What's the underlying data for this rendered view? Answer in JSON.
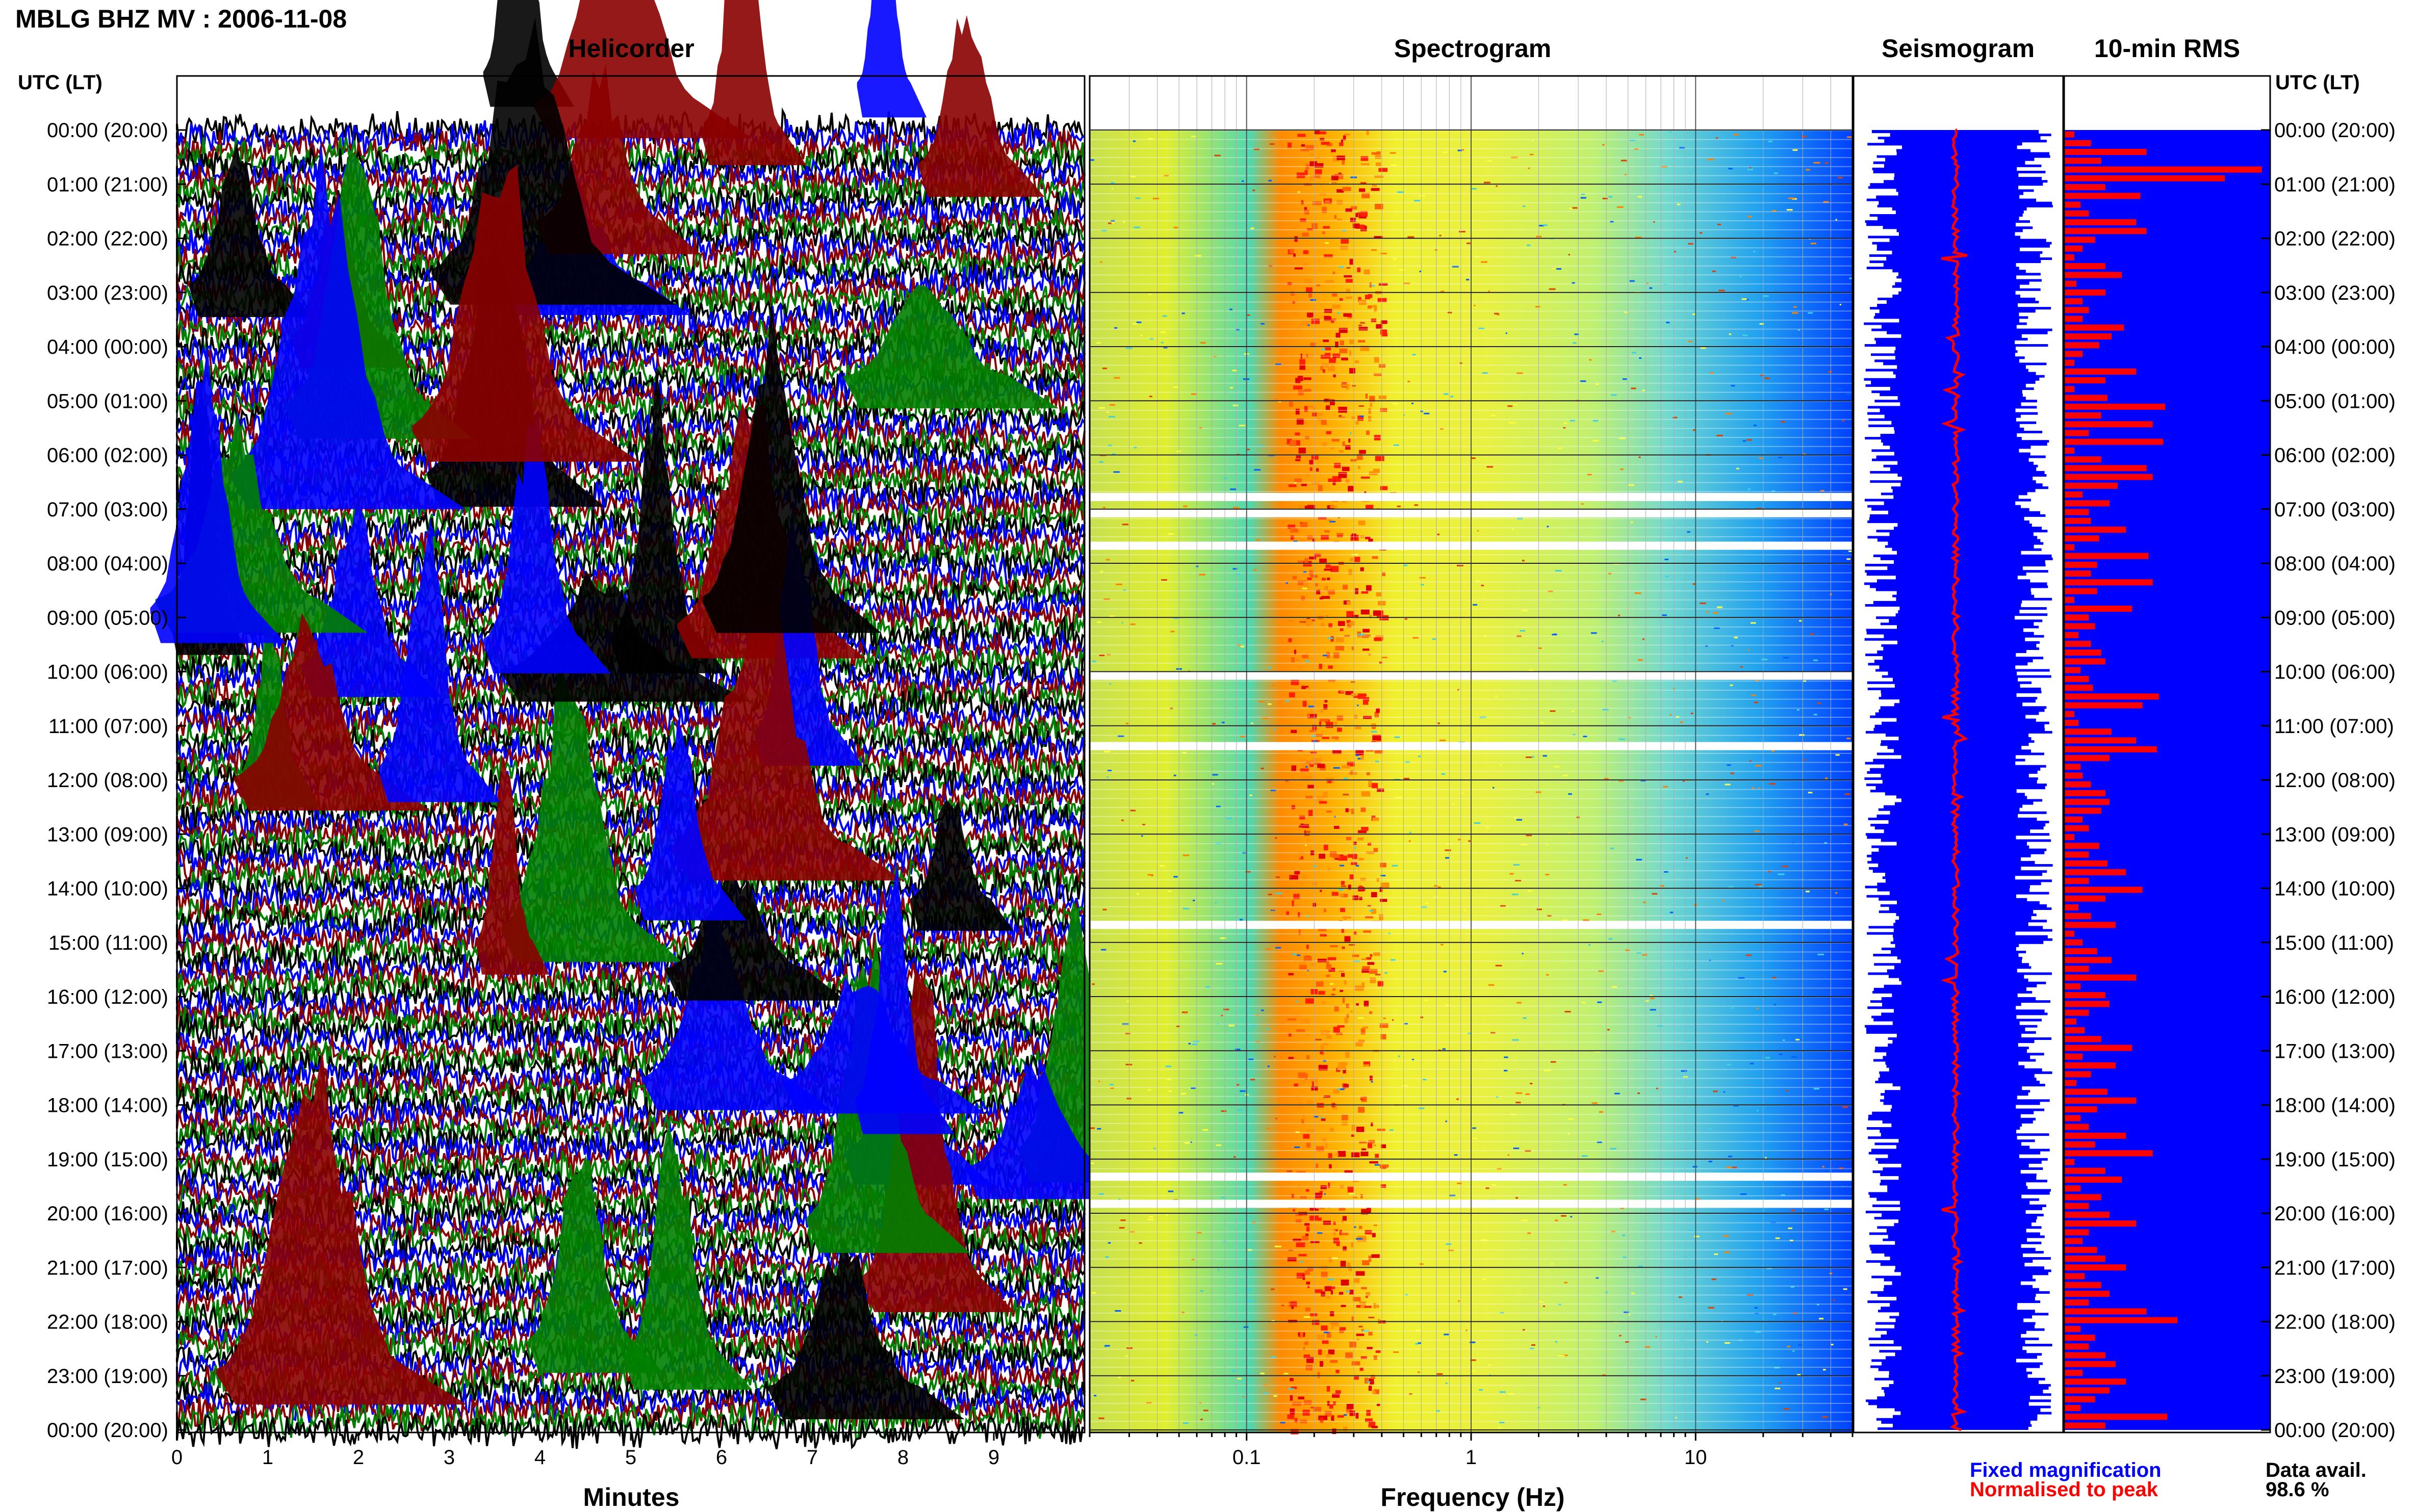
{
  "header": {
    "title": "MBLG BHZ MV : 2006-11-08"
  },
  "sections": {
    "helicorder": "Helicorder",
    "spectrogram": "Spectrogram",
    "seismogram": "Seismogram",
    "rms": "10-min RMS"
  },
  "time_axis": {
    "left_header": "UTC (LT)",
    "right_header": "UTC (LT)",
    "labels": [
      "00:00 (20:00)",
      "01:00 (21:00)",
      "02:00 (22:00)",
      "03:00 (23:00)",
      "04:00 (00:00)",
      "05:00 (01:00)",
      "06:00 (02:00)",
      "07:00 (03:00)",
      "08:00 (04:00)",
      "09:00 (05:00)",
      "10:00 (06:00)",
      "11:00 (07:00)",
      "12:00 (08:00)",
      "13:00 (09:00)",
      "14:00 (10:00)",
      "15:00 (11:00)",
      "16:00 (12:00)",
      "17:00 (13:00)",
      "18:00 (14:00)",
      "19:00 (15:00)",
      "20:00 (16:00)",
      "21:00 (17:00)",
      "22:00 (18:00)",
      "23:00 (19:00)",
      "00:00 (20:00)"
    ]
  },
  "legend": {
    "fixed": "Fixed magnification",
    "normalised": "Normalised to peak",
    "data_avail_label": "Data avail.",
    "data_avail_value": "98.6 %",
    "fixed_color": "#0000ff",
    "normalised_color": "#ff0000"
  },
  "chart_data": [
    {
      "type": "line",
      "title": "Helicorder",
      "xlabel": "Minutes",
      "ylabel": "UTC (LT)",
      "xlim": [
        0,
        10
      ],
      "x_ticks": [
        "0",
        "1",
        "2",
        "3",
        "4",
        "5",
        "6",
        "7",
        "8",
        "9"
      ],
      "trace_colors": [
        "#000000",
        "#0000ff",
        "#8b0000",
        "#008000"
      ],
      "rows_per_hour": 6
    },
    {
      "type": "heatmap",
      "title": "Spectrogram",
      "xlabel": "Frequency (Hz)",
      "x_scale": "log",
      "xlim": [
        0.02,
        50
      ],
      "x_ticks": [
        "0.1",
        "1",
        "10"
      ],
      "colormap": [
        "#0030ff",
        "#00b0ff",
        "#40e0d0",
        "#c0f060",
        "#ffff00",
        "#ff9000",
        "#e00000"
      ],
      "peak_band_hz": [
        0.15,
        0.4
      ],
      "gap_hours": [
        6.7,
        7.0,
        7.6,
        10.0,
        11.3,
        14.6,
        19.25,
        19.75
      ]
    },
    {
      "type": "line",
      "title": "Seismogram",
      "series": [
        {
          "name": "Fixed magnification",
          "color": "#0000ff"
        },
        {
          "name": "Normalised to peak",
          "color": "#ff0000"
        }
      ]
    },
    {
      "type": "bar",
      "title": "10-min RMS",
      "orientation": "horizontal",
      "interval_minutes": 10,
      "colors": {
        "background": "#0000ff",
        "bar": "#ff0000"
      },
      "rms": [
        0.05,
        0.13,
        0.4,
        0.18,
        0.96,
        0.78,
        0.2,
        0.37,
        0.08,
        0.12,
        0.35,
        0.4,
        0.15,
        0.09,
        0.05,
        0.2,
        0.28,
        0.06,
        0.2,
        0.09,
        0.12,
        0.09,
        0.29,
        0.23,
        0.17,
        0.09,
        0.05,
        0.35,
        0.2,
        0.05,
        0.21,
        0.49,
        0.18,
        0.43,
        0.12,
        0.48,
        0.05,
        0.18,
        0.4,
        0.43,
        0.26,
        0.09,
        0.22,
        0.12,
        0.13,
        0.3,
        0.17,
        0.05,
        0.41,
        0.16,
        0.13,
        0.43,
        0.16,
        0.05,
        0.33,
        0.12,
        0.15,
        0.07,
        0.13,
        0.18,
        0.2,
        0.08,
        0.12,
        0.14,
        0.46,
        0.38,
        0.05,
        0.07,
        0.23,
        0.35,
        0.45,
        0.22,
        0.08,
        0.09,
        0.13,
        0.2,
        0.22,
        0.18,
        0.09,
        0.12,
        0.05,
        0.17,
        0.12,
        0.21,
        0.3,
        0.12,
        0.38,
        0.2,
        0.07,
        0.13,
        0.25,
        0.05,
        0.09,
        0.16,
        0.23,
        0.12,
        0.35,
        0.08,
        0.2,
        0.22,
        0.12,
        0.06,
        0.1,
        0.18,
        0.33,
        0.09,
        0.25,
        0.13,
        0.06,
        0.21,
        0.35,
        0.16,
        0.08,
        0.12,
        0.3,
        0.15,
        0.43,
        0.05,
        0.2,
        0.28,
        0.08,
        0.18,
        0.12,
        0.22,
        0.35,
        0.12,
        0.09,
        0.16,
        0.2,
        0.3,
        0.1,
        0.18,
        0.22,
        0.12,
        0.4,
        0.55,
        0.08,
        0.15,
        0.12,
        0.2,
        0.25,
        0.09,
        0.3,
        0.22,
        0.15,
        0.08,
        0.5,
        0.2
      ]
    }
  ]
}
